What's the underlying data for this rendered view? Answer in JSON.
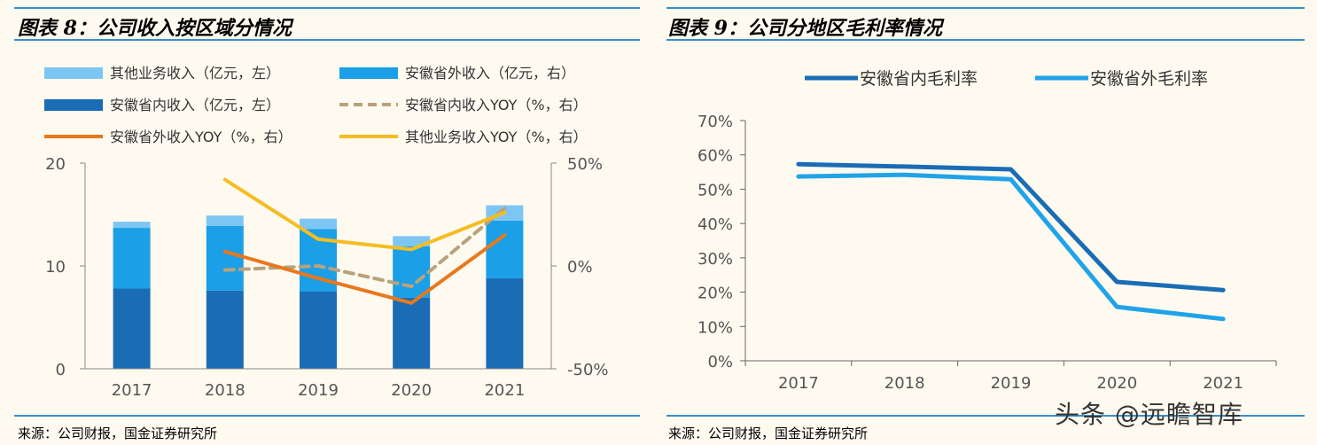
{
  "left": {
    "title": "图表 8：公司收入按区域分情况",
    "source": "来源：公司财报，国金证券研究所",
    "chart_data": {
      "type": "bar",
      "stacked": true,
      "categories": [
        "2017",
        "2018",
        "2019",
        "2020",
        "2021"
      ],
      "series": [
        {
          "name": "安徽省内收入（亿元，左）",
          "kind": "bar",
          "axis": "left",
          "color": "#1a6db5",
          "values": [
            7.8,
            7.6,
            7.5,
            6.9,
            8.8
          ]
        },
        {
          "name": "安徽省外收入（亿元，右）",
          "kind": "bar",
          "axis": "left",
          "color": "#1b9fe6",
          "values": [
            5.9,
            6.3,
            6.1,
            5.0,
            5.6
          ]
        },
        {
          "name": "其他业务收入（亿元，左）",
          "kind": "bar",
          "axis": "left",
          "color": "#7dc6f3",
          "values": [
            0.6,
            1.0,
            1.0,
            1.0,
            1.5
          ]
        },
        {
          "name": "安徽省内收入YOY（%，右）",
          "kind": "line",
          "dashed": true,
          "axis": "right",
          "color": "#b8a27d",
          "values": [
            null,
            -2.0,
            0.0,
            -10.0,
            28.0
          ]
        },
        {
          "name": "安徽省外收入YOY（%，右）",
          "kind": "line",
          "axis": "right",
          "color": "#e8781e",
          "values": [
            null,
            7.0,
            -6.0,
            -18.0,
            15.0
          ]
        },
        {
          "name": "其他业务收入YOY（%，右）",
          "kind": "line",
          "axis": "right",
          "color": "#f5bd23",
          "values": [
            null,
            42.0,
            13.0,
            8.0,
            26.0
          ]
        }
      ],
      "legend_order": [
        2,
        1,
        0,
        3,
        4,
        5
      ],
      "ylim_left": [
        0,
        20
      ],
      "yticks_left": [
        "0",
        "10",
        "20"
      ],
      "ylim_right": [
        -50,
        50
      ],
      "yticks_right": [
        "-50%",
        "0%",
        "50%"
      ]
    }
  },
  "right": {
    "title": "图表 9：公司分地区毛利率情况",
    "source": "来源：公司财报，国金证券研究所",
    "chart_data": {
      "type": "line",
      "x": [
        "2017",
        "2018",
        "2019",
        "2020",
        "2021"
      ],
      "series": [
        {
          "name": "安徽省内毛利率",
          "color": "#1a6db5",
          "values": [
            57.3,
            56.6,
            55.8,
            23.0,
            20.6
          ]
        },
        {
          "name": "安徽省外毛利率",
          "color": "#20a3e8",
          "values": [
            53.7,
            54.2,
            52.9,
            15.7,
            12.2
          ]
        }
      ],
      "ylim": [
        0,
        70
      ],
      "yticks": [
        "0%",
        "10%",
        "20%",
        "30%",
        "40%",
        "50%",
        "60%",
        "70%"
      ]
    }
  },
  "watermark": "头条 @远瞻智库"
}
